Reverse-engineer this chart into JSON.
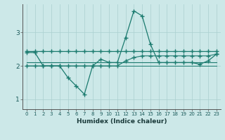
{
  "xlabel": "Humidex (Indice chaleur)",
  "bg_color": "#cce8e8",
  "line_color": "#1a7a6e",
  "grid_color": "#aacfcf",
  "xlim": [
    -0.5,
    23.5
  ],
  "ylim": [
    0.7,
    3.85
  ],
  "yticks": [
    1,
    2,
    3
  ],
  "xticks": [
    0,
    1,
    2,
    3,
    4,
    5,
    6,
    7,
    8,
    9,
    10,
    11,
    12,
    13,
    14,
    15,
    16,
    17,
    18,
    19,
    20,
    21,
    22,
    23
  ],
  "series": [
    {
      "y": [
        2.45,
        2.45,
        2.45,
        2.45,
        2.45,
        2.45,
        2.45,
        2.45,
        2.45,
        2.45,
        2.45,
        2.45,
        2.45,
        2.45,
        2.45,
        2.45,
        2.45,
        2.45,
        2.45,
        2.45,
        2.45,
        2.45,
        2.45,
        2.45
      ],
      "marker": "+",
      "markersize": 4,
      "linewidth": 0.9,
      "markeredgewidth": 1.0
    },
    {
      "y": [
        2.4,
        2.4,
        2.0,
        2.0,
        2.0,
        1.65,
        1.4,
        1.15,
        2.0,
        2.2,
        2.1,
        2.1,
        2.85,
        3.65,
        3.5,
        2.65,
        2.1,
        2.1,
        2.1,
        2.1,
        2.1,
        2.05,
        2.15,
        2.35
      ],
      "marker": "+",
      "markersize": 4,
      "linewidth": 0.9,
      "markeredgewidth": 1.0
    },
    {
      "y": [
        2.1,
        2.1,
        2.1,
        2.1,
        2.1,
        2.1,
        2.1,
        2.1,
        2.1,
        2.1,
        2.1,
        2.1,
        2.1,
        2.1,
        2.1,
        2.1,
        2.1,
        2.1,
        2.1,
        2.1,
        2.1,
        2.1,
        2.1,
        2.1
      ],
      "marker": "None",
      "markersize": 0,
      "linewidth": 0.8,
      "markeredgewidth": 0
    },
    {
      "y": [
        2.0,
        2.0,
        2.0,
        2.0,
        2.0,
        2.0,
        2.0,
        2.0,
        2.0,
        2.0,
        2.0,
        2.0,
        2.15,
        2.25,
        2.3,
        2.3,
        2.3,
        2.3,
        2.3,
        2.3,
        2.3,
        2.3,
        2.3,
        2.35
      ],
      "marker": "+",
      "markersize": 4,
      "linewidth": 0.8,
      "markeredgewidth": 1.0
    },
    {
      "y": [
        2.0,
        2.0,
        2.0,
        2.0,
        2.0,
        2.0,
        2.0,
        2.0,
        2.0,
        2.0,
        2.0,
        2.0,
        2.0,
        2.0,
        2.0,
        2.0,
        2.0,
        2.0,
        2.0,
        2.0,
        2.0,
        2.0,
        2.0,
        2.0
      ],
      "marker": "None",
      "markersize": 0,
      "linewidth": 0.7,
      "markeredgewidth": 0
    }
  ],
  "xtick_fontsize": 5.0,
  "ytick_fontsize": 6.5,
  "xlabel_fontsize": 6.5
}
